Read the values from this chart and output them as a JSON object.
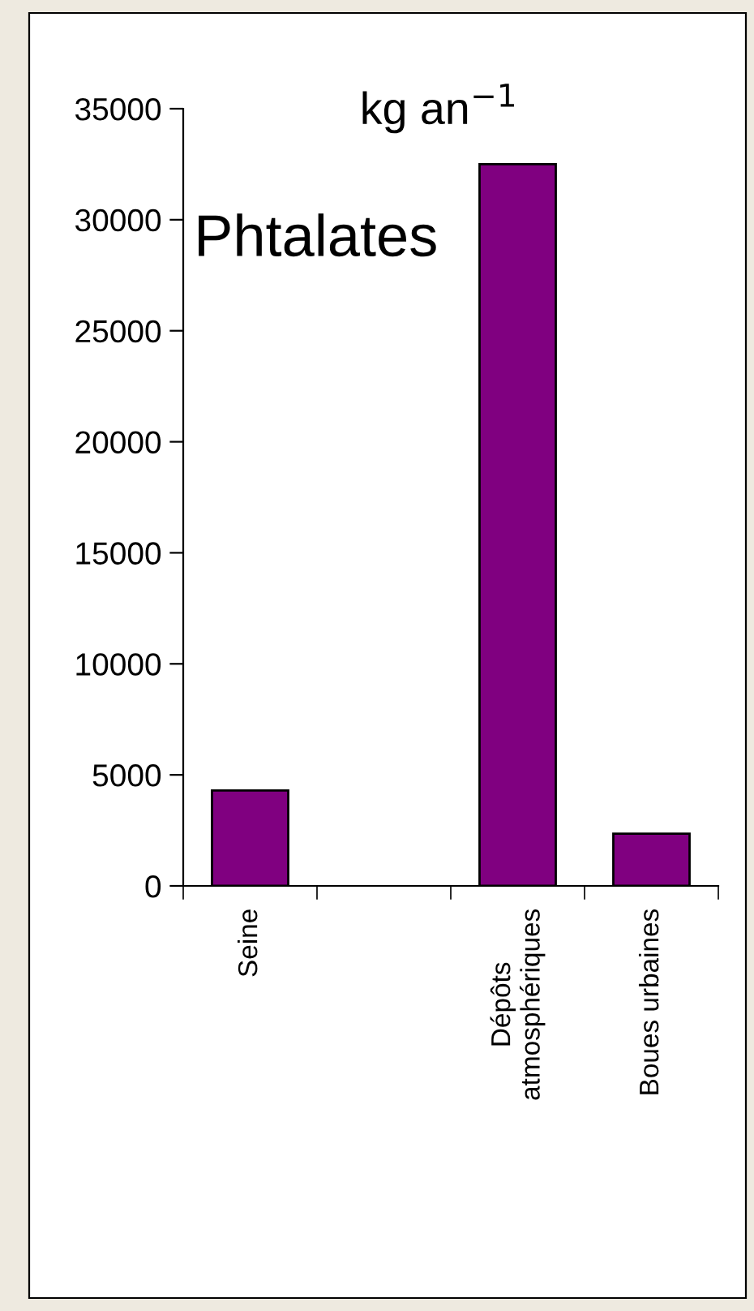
{
  "chart_data": {
    "type": "bar",
    "categories": [
      "Seine",
      null,
      "Dépôts\natmosphériques",
      "Boues urbaines"
    ],
    "values": [
      4300,
      null,
      32500,
      2350
    ],
    "color": "#800080",
    "ylim": [
      0,
      35000
    ],
    "yticks": [
      0,
      5000,
      10000,
      15000,
      20000,
      25000,
      30000,
      35000
    ],
    "grid": false,
    "annotations": [
      "kg an$^{−1}$",
      "Phtalates"
    ]
  }
}
